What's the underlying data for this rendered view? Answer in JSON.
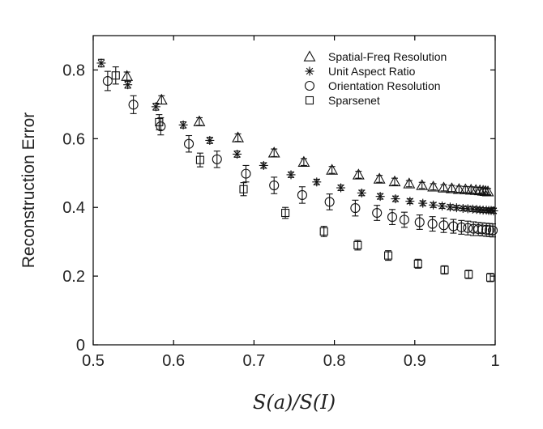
{
  "chart_data": {
    "type": "scatter",
    "title": "",
    "xlabel": "S(a)/S(I)",
    "ylabel": "Reconstruction  Error",
    "xlim": [
      0.5,
      1.0
    ],
    "ylim": [
      0,
      0.9
    ],
    "xticks": [
      0.5,
      0.6,
      0.7,
      0.8,
      0.9,
      1.0
    ],
    "xtick_labels": [
      "0.5",
      "0.6",
      "0.7",
      "0.8",
      "0.9",
      "1"
    ],
    "yticks": [
      0,
      0.2,
      0.4,
      0.6,
      0.8
    ],
    "ytick_labels": [
      "0",
      "0.2",
      "0.4",
      "0.6",
      "0.8"
    ],
    "grid": false,
    "legend_position": "top-right",
    "series": [
      {
        "name": "Spatial-Freq Resolution",
        "marker": "triangle",
        "x": [
          0.542,
          0.585,
          0.632,
          0.68,
          0.725,
          0.762,
          0.797,
          0.83,
          0.856,
          0.875,
          0.893,
          0.909,
          0.923,
          0.936,
          0.946,
          0.955,
          0.963,
          0.97,
          0.976,
          0.981,
          0.985,
          0.988,
          0.991
        ],
        "y": [
          0.782,
          0.713,
          0.65,
          0.603,
          0.559,
          0.532,
          0.509,
          0.495,
          0.483,
          0.475,
          0.469,
          0.464,
          0.46,
          0.457,
          0.455,
          0.453,
          0.452,
          0.451,
          0.45,
          0.449,
          0.448,
          0.447,
          0.446
        ],
        "err": [
          0.012,
          0.012,
          0.011,
          0.011,
          0.011,
          0.01,
          0.01,
          0.01,
          0.01,
          0.01,
          0.009,
          0.009,
          0.009,
          0.009,
          0.009,
          0.009,
          0.009,
          0.009,
          0.009,
          0.009,
          0.009,
          0.009,
          0.009
        ]
      },
      {
        "name": "Unit Aspect Ratio",
        "marker": "asterisk",
        "x": [
          0.51,
          0.543,
          0.578,
          0.612,
          0.645,
          0.679,
          0.712,
          0.746,
          0.778,
          0.808,
          0.834,
          0.857,
          0.876,
          0.894,
          0.91,
          0.923,
          0.934,
          0.944,
          0.952,
          0.96,
          0.966,
          0.972,
          0.977,
          0.981,
          0.985,
          0.989,
          0.992,
          0.995,
          0.998
        ],
        "y": [
          0.82,
          0.757,
          0.693,
          0.64,
          0.595,
          0.555,
          0.522,
          0.495,
          0.474,
          0.457,
          0.442,
          0.432,
          0.425,
          0.418,
          0.412,
          0.407,
          0.404,
          0.401,
          0.399,
          0.397,
          0.396,
          0.395,
          0.394,
          0.393,
          0.392,
          0.392,
          0.391,
          0.391,
          0.39
        ],
        "err": [
          0.011,
          0.01,
          0.01,
          0.009,
          0.009,
          0.009,
          0.008,
          0.008,
          0.008,
          0.008,
          0.008,
          0.008,
          0.008,
          0.007,
          0.007,
          0.007,
          0.007,
          0.007,
          0.007,
          0.007,
          0.007,
          0.007,
          0.007,
          0.007,
          0.007,
          0.007,
          0.007,
          0.007,
          0.007
        ]
      },
      {
        "name": "Orientation Resolution",
        "marker": "circle",
        "x": [
          0.518,
          0.55,
          0.584,
          0.619,
          0.654,
          0.69,
          0.725,
          0.76,
          0.794,
          0.826,
          0.853,
          0.872,
          0.887,
          0.906,
          0.922,
          0.936,
          0.948,
          0.958,
          0.966,
          0.973,
          0.979,
          0.984,
          0.989,
          0.993,
          0.997
        ],
        "y": [
          0.768,
          0.699,
          0.636,
          0.585,
          0.54,
          0.498,
          0.464,
          0.436,
          0.416,
          0.398,
          0.384,
          0.372,
          0.364,
          0.357,
          0.352,
          0.348,
          0.345,
          0.342,
          0.34,
          0.338,
          0.337,
          0.336,
          0.335,
          0.334,
          0.333
        ],
        "err": [
          0.028,
          0.026,
          0.025,
          0.024,
          0.024,
          0.024,
          0.024,
          0.024,
          0.023,
          0.023,
          0.022,
          0.022,
          0.022,
          0.021,
          0.021,
          0.021,
          0.02,
          0.02,
          0.02,
          0.02,
          0.019,
          0.019,
          0.019,
          0.019,
          0.019
        ]
      },
      {
        "name": "Sparsenet",
        "marker": "square",
        "x": [
          0.528,
          0.582,
          0.633,
          0.687,
          0.739,
          0.787,
          0.829,
          0.867,
          0.904,
          0.937,
          0.967,
          0.994
        ],
        "y": [
          0.784,
          0.648,
          0.538,
          0.453,
          0.384,
          0.33,
          0.29,
          0.26,
          0.236,
          0.218,
          0.205,
          0.196
        ],
        "err": [
          0.025,
          0.022,
          0.02,
          0.019,
          0.016,
          0.015,
          0.014,
          0.014,
          0.013,
          0.012,
          0.012,
          0.012
        ]
      }
    ]
  }
}
